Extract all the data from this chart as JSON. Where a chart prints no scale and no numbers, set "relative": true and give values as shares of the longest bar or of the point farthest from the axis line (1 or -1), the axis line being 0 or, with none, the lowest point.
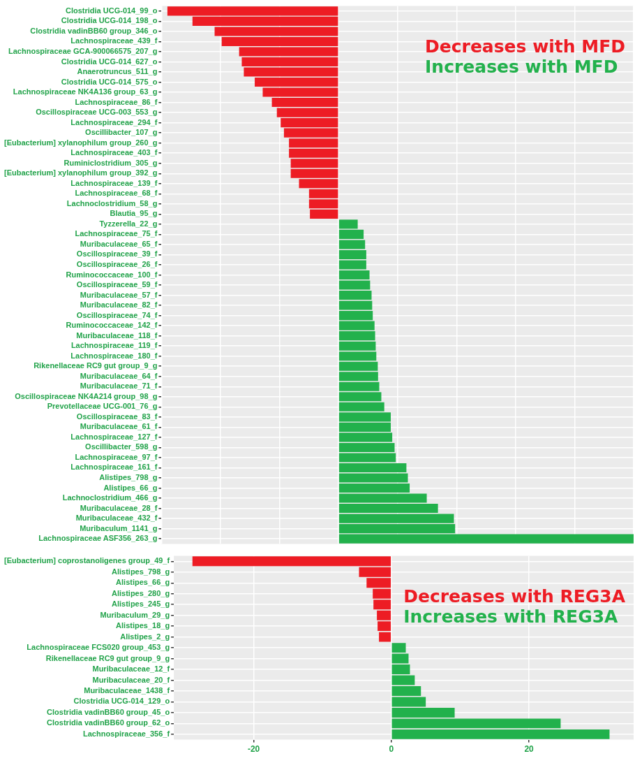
{
  "chart_data": [
    {
      "type": "bar",
      "orientation": "horizontal",
      "stacked": true,
      "relative": true,
      "grid": true,
      "legend": "top right",
      "categories": [
        "Clostridia UCG-014_99_o",
        "Clostridia UCG-014_198_o",
        "Clostridia vadinBB60 group_346_o",
        "Lachnospiraceae_439_f",
        "Lachnospiraceae GCA-900066575_207_g",
        "Clostridia UCG-014_627_o",
        "Anaerotruncus_511_g",
        "Clostridia UCG-014_575_o",
        "Lachnospiraceae NK4A136 group_63_g",
        "Lachnospiraceae_86_f",
        "Oscillospiraceae UCG-003_553_g",
        "Lachnospiraceae_294_f",
        "Oscillibacter_107_g",
        "[Eubacterium] xylanophilum group_260_g",
        "Lachnospiraceae_403_f",
        "Ruminiclostridium_305_g",
        "[Eubacterium] xylanophilum group_392_g",
        "Lachnospiraceae_139_f",
        "Lachnospiraceae_68_f",
        "Lachnoclostridium_58_g",
        "Blautia_95_g",
        "Tyzzerella_22_g",
        "Lachnospiraceae_75_f",
        "Muribaculaceae_65_f",
        "Oscillospiraceae_39_f",
        "Oscillospiraceae_26_f",
        "Ruminococcaceae_100_f",
        "Oscillospiraceae_59_f",
        "Muribaculaceae_57_f",
        "Muribaculaceae_82_f",
        "Oscillospiraceae_74_f",
        "Ruminococcaceae_142_f",
        "Muribaculaceae_118_f",
        "Lachnospiraceae_119_f",
        "Lachnospiraceae_180_f",
        "Rikenellaceae RC9 gut group_9_g",
        "Muribaculaceae_64_f",
        "Muribaculaceae_71_f",
        "Oscillospiraceae NK4A214 group_98_g",
        "Prevotellaceae UCG-001_76_g",
        "Oscillospiraceae_83_f",
        "Muribaculaceae_61_f",
        "Lachnospiraceae_127_f",
        "Oscillibacter_598_g",
        "Lachnospiraceae_97_f",
        "Lachnospiraceae_161_f",
        "Alistipes_798_g",
        "Alistipes_66_g",
        "Lachnoclostridium_466_g",
        "Muribaculaceae_28_f",
        "Muribaculaceae_432_f",
        "Muribaculum_1141_g",
        "Lachnospiraceae ASF356_263_g"
      ],
      "series": [
        {
          "name": "Decreases with MFD",
          "color": "#ed1c24",
          "values": [
            -0.58,
            -0.495,
            -0.42,
            -0.396,
            -0.337,
            -0.328,
            -0.321,
            -0.284,
            -0.257,
            -0.226,
            -0.209,
            -0.196,
            -0.185,
            -0.168,
            -0.168,
            -0.162,
            -0.162,
            -0.134,
            -0.1,
            -0.1,
            -0.097,
            null,
            null,
            null,
            null,
            null,
            null,
            null,
            null,
            null,
            null,
            null,
            null,
            null,
            null,
            null,
            null,
            null,
            null,
            null,
            null,
            null,
            null,
            null,
            null,
            null,
            null,
            null,
            null,
            null,
            null,
            null,
            null
          ]
        },
        {
          "name": "Increases with MFD",
          "color": "#22b14c",
          "values": [
            null,
            null,
            null,
            null,
            null,
            null,
            null,
            null,
            null,
            null,
            null,
            null,
            null,
            null,
            null,
            null,
            null,
            null,
            null,
            null,
            null,
            0.065,
            0.085,
            0.09,
            0.094,
            0.094,
            0.105,
            0.107,
            0.112,
            0.114,
            0.116,
            0.122,
            0.124,
            0.126,
            0.128,
            0.133,
            0.134,
            0.138,
            0.145,
            0.155,
            0.177,
            0.177,
            0.182,
            0.19,
            0.194,
            0.23,
            0.235,
            0.241,
            0.299,
            0.337,
            0.391,
            0.395,
            1
          ]
        }
      ]
    },
    {
      "type": "bar",
      "orientation": "horizontal",
      "stacked": true,
      "grid": true,
      "legend": "top right",
      "xlim": [
        -31.6,
        35.2
      ],
      "xticks": [
        -20,
        0,
        20
      ],
      "categories": [
        "[Eubacterium] coprostanoligenes group_49_f",
        "Alistipes_798_g",
        "Alistipes_66_g",
        "Alistipes_280_g",
        "Alistipes_245_g",
        "Muribaculum_29_g",
        "Alistipes_18_g",
        "Alistipes_2_g",
        "Lachnospiraceae FCS020 group_453_g",
        "Rikenellaceae RC9 gut group_9_g",
        "Muribaculaceae_12_f",
        "Muribaculaceae_20_f",
        "Muribaculaceae_1438_f",
        "Clostridia UCG-014_129_o",
        "Clostridia vadinBB60 group_45_o",
        "Clostridia vadinBB60 group_62_o",
        "Lachnospiraceae_356_f"
      ],
      "series": [
        {
          "name": "Decreases with REG3A",
          "color": "#ed1c24",
          "values": [
            -28.9,
            -4.7,
            -3.6,
            -2.7,
            -2.6,
            -2.1,
            -2.0,
            -1.8,
            null,
            null,
            null,
            null,
            null,
            null,
            null,
            null,
            null
          ]
        },
        {
          "name": "Increases with REG3A",
          "color": "#22b14c",
          "values": [
            null,
            null,
            null,
            null,
            null,
            null,
            null,
            null,
            2.1,
            2.5,
            2.7,
            3.4,
            4.3,
            5.0,
            9.2,
            24.6,
            31.7
          ]
        }
      ]
    }
  ]
}
